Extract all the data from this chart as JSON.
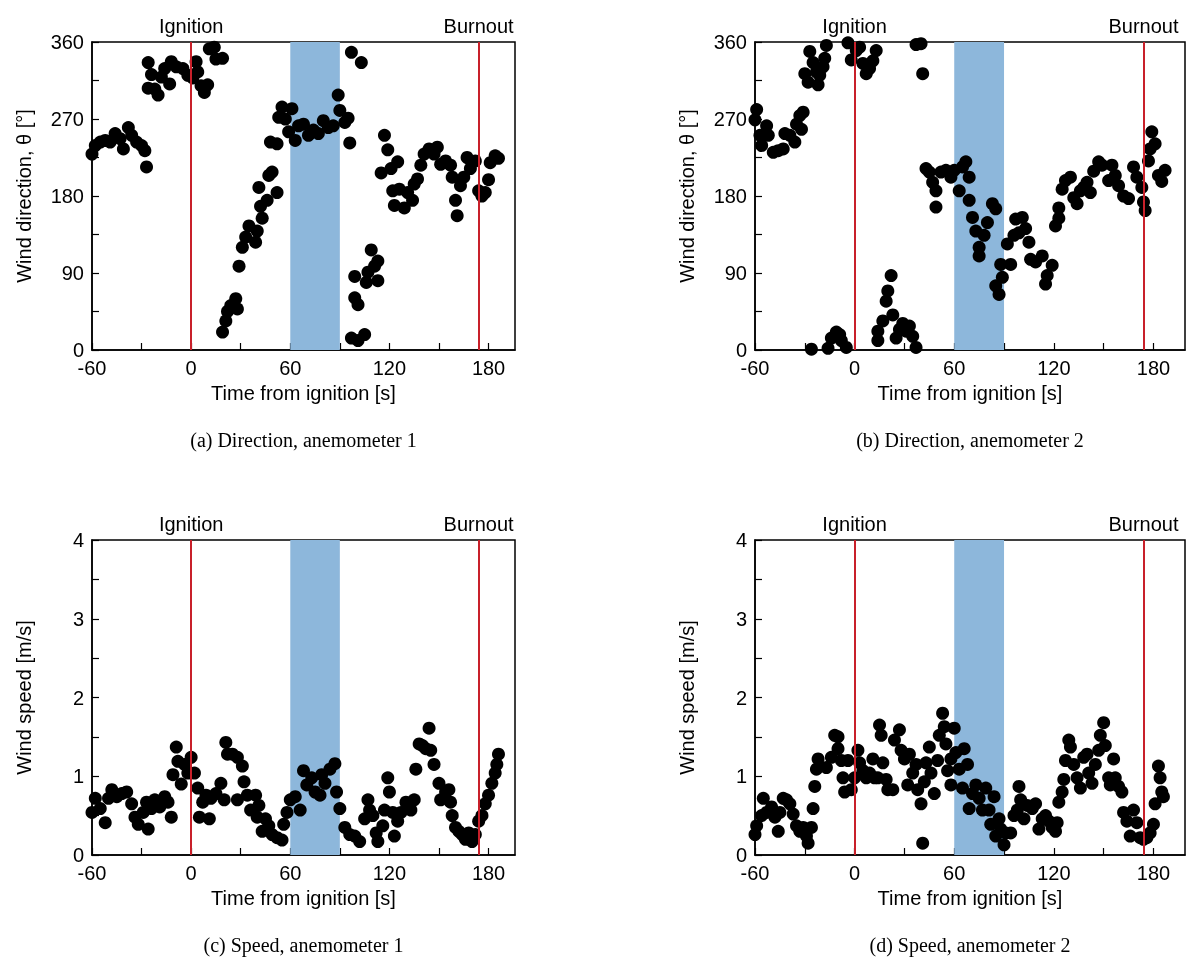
{
  "chart_data": [
    {
      "type": "scatter",
      "xlabel": "Time from ignition [s]",
      "ylabel": "Wind direction, θ [°]",
      "marker": "circle",
      "xlim": [
        -60,
        196
      ],
      "xticks": [
        -60,
        {
          "value": -30,
          "label": null
        },
        0,
        {
          "value": 30,
          "label": null
        },
        60,
        {
          "value": 90,
          "label": null
        },
        120,
        {
          "value": 150,
          "label": null
        },
        180
      ],
      "ylim": [
        0,
        360
      ],
      "yticks": [
        0,
        {
          "value": 45,
          "label": null
        },
        90,
        {
          "value": 135,
          "label": null
        },
        180,
        {
          "value": 225,
          "label": null
        },
        270,
        {
          "value": 315,
          "label": null
        },
        360
      ],
      "ref_lines": [
        {
          "axis": "x",
          "value": 0,
          "label": "Ignition",
          "color": "#c8202a"
        },
        {
          "axis": "x",
          "value": 174,
          "label": "Burnout",
          "color": "#c8202a"
        }
      ],
      "bands": [
        {
          "axis": "x",
          "from": 60,
          "to": 90,
          "color": "#8db7db"
        }
      ],
      "annotations": [
        "(a) Direction, anemometer 1"
      ],
      "x": [
        -60,
        -58,
        -55,
        -52,
        -49,
        -46,
        -43,
        -41,
        -38,
        -36,
        -33,
        -30,
        -28,
        -27,
        -26,
        -24,
        -26,
        -22,
        -20,
        -18,
        -16,
        -13,
        -12,
        -9,
        -5,
        -2,
        1,
        3,
        4,
        6,
        8,
        10,
        11,
        14,
        15,
        19,
        19,
        21,
        22,
        24,
        27,
        28,
        29,
        31,
        33,
        35,
        39,
        40,
        41,
        42,
        43,
        46,
        47,
        49,
        52,
        48,
        52,
        53,
        55,
        57,
        59,
        61,
        63,
        65,
        68,
        71,
        74,
        77,
        80,
        83,
        86,
        89,
        90,
        93,
        95,
        96,
        97,
        103,
        99,
        99,
        101,
        97,
        101,
        105,
        106,
        107,
        109,
        111,
        113,
        113,
        115,
        117,
        119,
        121,
        122,
        123,
        125,
        126,
        129,
        131,
        134,
        135,
        137,
        139,
        141,
        144,
        147,
        149,
        151,
        154,
        157,
        158,
        160,
        161,
        163,
        165,
        167,
        169,
        172,
        174,
        176,
        178,
        180,
        181,
        184,
        186
      ],
      "series": [
        {
          "color": "#000000",
          "values": [
            229,
            239,
            243,
            245,
            243,
            253,
            247,
            235,
            260,
            251,
            243,
            239,
            233,
            214,
            336,
            322,
            306,
            305,
            298,
            319,
            329,
            311,
            337,
            331,
            329,
            321,
            318,
            337,
            325,
            309,
            301,
            310,
            352,
            354,
            340,
            341,
            21,
            34,
            45,
            52,
            60,
            48,
            98,
            120,
            132,
            145,
            126,
            139,
            190,
            168,
            154,
            175,
            204,
            208,
            184,
            243,
            241,
            272,
            284,
            270,
            255,
            282,
            245,
            262,
            264,
            251,
            257,
            253,
            268,
            260,
            262,
            298,
            280,
            266,
            271,
            242,
            348,
            336,
            86,
            61,
            53,
            14,
            11,
            18,
            79,
            91,
            117,
            98,
            104,
            81,
            207,
            251,
            234,
            212,
            186,
            169,
            220,
            188,
            166,
            184,
            175,
            194,
            200,
            216,
            229,
            235,
            229,
            237,
            217,
            221,
            216,
            202,
            175,
            157,
            192,
            202,
            225,
            212,
            221,
            186,
            180,
            184,
            199,
            219,
            227,
            224
          ]
        }
      ]
    },
    {
      "type": "scatter",
      "xlabel": "Time from ignition [s]",
      "ylabel": "Wind direction, θ [°]",
      "marker": "circle",
      "xlim": [
        -60,
        199
      ],
      "xticks": [
        -60,
        {
          "value": -30,
          "label": null
        },
        0,
        {
          "value": 30,
          "label": null
        },
        60,
        {
          "value": 90,
          "label": null
        },
        120,
        {
          "value": 150,
          "label": null
        },
        180
      ],
      "ylim": [
        0,
        360
      ],
      "yticks": [
        0,
        {
          "value": 45,
          "label": null
        },
        90,
        {
          "value": 135,
          "label": null
        },
        180,
        {
          "value": 225,
          "label": null
        },
        270,
        {
          "value": 315,
          "label": null
        },
        360
      ],
      "ref_lines": [
        {
          "axis": "x",
          "value": 0,
          "label": "Ignition",
          "color": "#c8202a"
        },
        {
          "axis": "x",
          "value": 174,
          "label": "Burnout",
          "color": "#c8202a"
        }
      ],
      "bands": [
        {
          "axis": "x",
          "from": 60,
          "to": 90,
          "color": "#8db7db"
        }
      ],
      "annotations": [
        "(b) Direction, anemometer 2"
      ],
      "x": [
        -59,
        -60,
        -57,
        -56,
        -53,
        -52,
        -49,
        -46,
        -43,
        -42,
        -39,
        -36,
        -35,
        -33,
        -31,
        -32,
        -30,
        -28,
        -27,
        -25,
        -22,
        -23,
        -21,
        -19,
        -18,
        -17,
        -26,
        -16,
        -14,
        -11,
        -9,
        -8,
        -5,
        -4,
        -2,
        1,
        3,
        5,
        7,
        9,
        11,
        13,
        14,
        14,
        17,
        19,
        20,
        22,
        23,
        25,
        27,
        29,
        31,
        33,
        35,
        37,
        37,
        40,
        41,
        43,
        45,
        47,
        49,
        49,
        52,
        55,
        58,
        60,
        63,
        65,
        67,
        69,
        69,
        71,
        73,
        75,
        75,
        78,
        80,
        83,
        85,
        85,
        87,
        88,
        89,
        92,
        94,
        96,
        97,
        99,
        101,
        103,
        105,
        106,
        109,
        113,
        115,
        116,
        119,
        121,
        123,
        123,
        125,
        127,
        130,
        132,
        134,
        136,
        138,
        140,
        142,
        144,
        147,
        149,
        153,
        155,
        157,
        159,
        162,
        165,
        168,
        170,
        173,
        174,
        175,
        177,
        178,
        179,
        181,
        183,
        185,
        187
      ],
      "series": [
        {
          "color": "#000000",
          "values": [
            281,
            269,
            251,
            239,
            262,
            251,
            231,
            233,
            235,
            253,
            251,
            243,
            264,
            274,
            278,
            258,
            323,
            313,
            349,
            336,
            310,
            325,
            321,
            331,
            341,
            356,
            1,
            2,
            14,
            21,
            18,
            11,
            3,
            359,
            339,
            350,
            354,
            335,
            323,
            329,
            338,
            350,
            11,
            22,
            34,
            57,
            69,
            87,
            41,
            14,
            24,
            31,
            22,
            28,
            16,
            3,
            357,
            358,
            323,
            212,
            208,
            196,
            167,
            186,
            208,
            210,
            202,
            210,
            186,
            214,
            220,
            202,
            175,
            155,
            139,
            120,
            110,
            134,
            149,
            171,
            165,
            75,
            65,
            100,
            85,
            124,
            100,
            134,
            153,
            137,
            155,
            142,
            126,
            106,
            103,
            110,
            77,
            87,
            99,
            145,
            154,
            166,
            188,
            198,
            202,
            178,
            171,
            186,
            190,
            196,
            184,
            209,
            220,
            216,
            198,
            216,
            204,
            192,
            180,
            177,
            214,
            202,
            190,
            173,
            163,
            221,
            235,
            255,
            241,
            204,
            197,
            210
          ]
        }
      ]
    },
    {
      "type": "scatter",
      "xlabel": "Time from ignition [s]",
      "ylabel": "Wind speed [m/s]",
      "marker": "circle",
      "xlim": [
        -60,
        196
      ],
      "xticks": [
        -60,
        {
          "value": -30,
          "label": null
        },
        0,
        {
          "value": 30,
          "label": null
        },
        60,
        {
          "value": 90,
          "label": null
        },
        120,
        {
          "value": 150,
          "label": null
        },
        180
      ],
      "ylim": [
        0,
        4
      ],
      "yticks": [
        0,
        {
          "value": 0.5,
          "label": null
        },
        1,
        {
          "value": 1.5,
          "label": null
        },
        2,
        {
          "value": 2.5,
          "label": null
        },
        3,
        {
          "value": 3.5,
          "label": null
        },
        4
      ],
      "ref_lines": [
        {
          "axis": "x",
          "value": 0,
          "label": "Ignition",
          "color": "#c8202a"
        },
        {
          "axis": "x",
          "value": 174,
          "label": "Burnout",
          "color": "#c8202a"
        }
      ],
      "bands": [
        {
          "axis": "x",
          "from": 60,
          "to": 90,
          "color": "#8db7db"
        }
      ],
      "annotations": [
        "(c) Speed, anemometer 1"
      ],
      "x": [
        -60,
        -58,
        -55,
        -52,
        -50,
        -48,
        -45,
        -42,
        -39,
        -36,
        -34,
        -32,
        -29,
        -27,
        -26,
        -24,
        -22,
        -19,
        -16,
        -14,
        -12,
        -11,
        -9,
        -8,
        -6,
        -4,
        -2,
        0,
        2,
        4,
        5,
        7,
        9,
        11,
        12,
        15,
        18,
        20,
        21,
        22,
        25,
        28,
        31,
        32,
        28,
        34,
        36,
        39,
        41,
        40,
        43,
        45,
        47,
        49,
        52,
        55,
        56,
        58,
        60,
        63,
        66,
        68,
        70,
        73,
        75,
        78,
        79,
        81,
        84,
        87,
        88,
        90,
        93,
        96,
        99,
        102,
        105,
        107,
        108,
        110,
        112,
        113,
        116,
        117,
        119,
        120,
        122,
        123,
        125,
        127,
        130,
        133,
        135,
        136,
        138,
        140,
        142,
        144,
        145,
        147,
        150,
        151,
        154,
        156,
        157,
        158,
        160,
        162,
        164,
        166,
        168,
        170,
        172,
        174,
        176,
        178,
        180,
        182,
        184,
        185,
        186
      ],
      "series": [
        {
          "color": "#000000",
          "values": [
            0.54,
            0.72,
            0.59,
            0.41,
            0.72,
            0.83,
            0.74,
            0.78,
            0.8,
            0.65,
            0.48,
            0.39,
            0.54,
            0.67,
            0.33,
            0.59,
            0.7,
            0.61,
            0.74,
            0.67,
            0.48,
            1.02,
            1.37,
            1.19,
            0.9,
            1.15,
            1.04,
            1.24,
            1.04,
            0.85,
            0.48,
            0.67,
            0.76,
            0.46,
            0.72,
            0.78,
            0.91,
            0.7,
            1.43,
            1.28,
            1.28,
            1.24,
            1.13,
            0.93,
            0.7,
            0.76,
            0.57,
            0.76,
            0.63,
            0.48,
            0.3,
            0.46,
            0.37,
            0.26,
            0.22,
            0.19,
            0.39,
            0.54,
            0.7,
            0.74,
            0.57,
            1.07,
            0.89,
            0.98,
            0.8,
            0.76,
            1.02,
            0.91,
            1.09,
            1.16,
            0.8,
            0.59,
            0.35,
            0.26,
            0.24,
            0.17,
            0.46,
            0.7,
            0.57,
            0.5,
            0.28,
            0.17,
            0.37,
            0.57,
            0.98,
            0.8,
            0.54,
            0.24,
            0.43,
            0.54,
            0.67,
            0.57,
            0.7,
            1.09,
            1.41,
            1.39,
            1.35,
            1.61,
            1.33,
            1.15,
            0.91,
            0.7,
            0.8,
            0.83,
            0.67,
            0.5,
            0.35,
            0.3,
            0.26,
            0.2,
            0.28,
            0.17,
            0.26,
            0.43,
            0.5,
            0.65,
            0.76,
            0.91,
            1.04,
            1.15,
            1.28
          ]
        }
      ]
    },
    {
      "type": "scatter",
      "xlabel": "Time from ignition [s]",
      "ylabel": "Wind speed [m/s]",
      "marker": "circle",
      "xlim": [
        -60,
        199
      ],
      "xticks": [
        -60,
        {
          "value": -30,
          "label": null
        },
        0,
        {
          "value": 30,
          "label": null
        },
        60,
        {
          "value": 90,
          "label": null
        },
        120,
        {
          "value": 150,
          "label": null
        },
        180
      ],
      "ylim": [
        0,
        4
      ],
      "yticks": [
        0,
        {
          "value": 0.5,
          "label": null
        },
        1,
        {
          "value": 1.5,
          "label": null
        },
        2,
        {
          "value": 2.5,
          "label": null
        },
        3,
        {
          "value": 3.5,
          "label": null
        },
        4
      ],
      "ref_lines": [
        {
          "axis": "x",
          "value": 0,
          "label": "Ignition",
          "color": "#c8202a"
        },
        {
          "axis": "x",
          "value": 174,
          "label": "Burnout",
          "color": "#c8202a"
        }
      ],
      "bands": [
        {
          "axis": "x",
          "from": 60,
          "to": 90,
          "color": "#8db7db"
        }
      ],
      "annotations": [
        "(d) Speed, anemometer 2"
      ],
      "x": [
        -60,
        -59,
        -56,
        -55,
        -53,
        -50,
        -48,
        -46,
        -45,
        -43,
        -41,
        -39,
        -37,
        -35,
        -33,
        -31,
        -29,
        -28,
        -26,
        -25,
        -24,
        -23,
        -22,
        -17,
        -14,
        -12,
        -10,
        -10,
        -8,
        -7,
        -6,
        -4,
        -2,
        0,
        2,
        3,
        5,
        7,
        9,
        11,
        12,
        14,
        15,
        16,
        17,
        19,
        20,
        23,
        24,
        27,
        28,
        30,
        32,
        33,
        35,
        37,
        38,
        40,
        41,
        42,
        43,
        45,
        46,
        48,
        50,
        51,
        53,
        54,
        55,
        56,
        58,
        58,
        60,
        61,
        63,
        65,
        66,
        68,
        69,
        71,
        73,
        75,
        77,
        79,
        81,
        82,
        84,
        85,
        87,
        88,
        90,
        91,
        94,
        96,
        98,
        99,
        100,
        102,
        104,
        107,
        109,
        111,
        113,
        115,
        117,
        119,
        121,
        122,
        123,
        125,
        126,
        127,
        129,
        130,
        132,
        134,
        136,
        138,
        140,
        141,
        143,
        145,
        147,
        148,
        150,
        151,
        153,
        154,
        156,
        157,
        159,
        161,
        162,
        164,
        166,
        168,
        170,
        172,
        174,
        176,
        178,
        180,
        181,
        183,
        184,
        185,
        186
      ],
      "series": [
        {
          "color": "#000000",
          "values": [
            0.26,
            0.37,
            0.5,
            0.72,
            0.54,
            0.61,
            0.48,
            0.3,
            0.54,
            0.72,
            0.7,
            0.65,
            0.52,
            0.37,
            0.3,
            0.35,
            0.24,
            0.15,
            0.35,
            0.59,
            0.87,
            1.09,
            1.22,
            1.11,
            1.24,
            1.52,
            1.5,
            1.35,
            1.2,
            0.98,
            0.8,
            1.2,
            0.83,
            0.98,
            1.33,
            1.17,
            1.07,
            0.98,
            1.04,
            1.22,
            0.98,
            0.98,
            1.65,
            1.52,
            1.17,
            0.96,
            0.83,
            0.83,
            1.46,
            1.59,
            1.33,
            1.22,
            0.89,
            1.28,
            1.04,
            1.15,
            0.83,
            0.65,
            0.15,
            0.93,
            1.17,
            1.37,
            1.04,
            0.78,
            1.2,
            1.52,
            1.8,
            1.63,
            1.41,
            1.07,
            0.89,
            1.22,
            1.61,
            1.3,
            1.09,
            0.85,
            1.35,
            1.15,
            0.59,
            0.78,
            0.89,
            0.72,
            0.57,
            0.85,
            0.57,
            0.39,
            0.74,
            0.24,
            0.46,
            0.33,
            0.13,
            0.28,
            0.28,
            0.5,
            0.57,
            0.87,
            0.7,
            0.46,
            0.63,
            0.59,
            0.65,
            0.33,
            0.46,
            0.5,
            0.43,
            0.35,
            0.3,
            0.41,
            0.67,
            0.8,
            0.96,
            1.2,
            1.46,
            1.37,
            1.15,
            0.98,
            0.85,
            1.24,
            1.28,
            1.04,
            0.91,
            1.15,
            1.33,
            1.52,
            1.68,
            1.39,
            0.98,
            0.89,
            1.22,
            0.98,
            0.87,
            0.8,
            0.54,
            0.43,
            0.24,
            0.57,
            0.41,
            0.22,
            0.2,
            0.22,
            0.28,
            0.39,
            0.65,
            1.13,
            0.98,
            0.8,
            0.74
          ]
        }
      ]
    }
  ]
}
